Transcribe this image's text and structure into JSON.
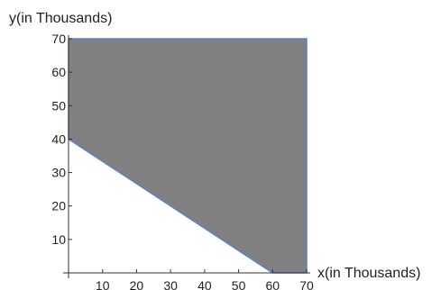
{
  "chart_data": {
    "type": "area",
    "xlabel": "x(in Thousands)",
    "ylabel": "y(in Thousands)",
    "xlim": [
      0,
      70
    ],
    "ylim": [
      0,
      70
    ],
    "xticks": [
      "10",
      "20",
      "30",
      "40",
      "50",
      "60",
      "70"
    ],
    "yticks": [
      "10",
      "20",
      "30",
      "40",
      "50",
      "60",
      "70"
    ],
    "grid": false,
    "region": {
      "description_points": [
        [
          0,
          40
        ],
        [
          0,
          70
        ],
        [
          70,
          70
        ],
        [
          70,
          0
        ],
        [
          60,
          0
        ]
      ],
      "boundary_line": {
        "x": [
          0,
          60
        ],
        "y": [
          40,
          0
        ]
      }
    },
    "colors": {
      "fill": "#808080",
      "border": "#5b84c4",
      "axis": "#333333"
    }
  }
}
